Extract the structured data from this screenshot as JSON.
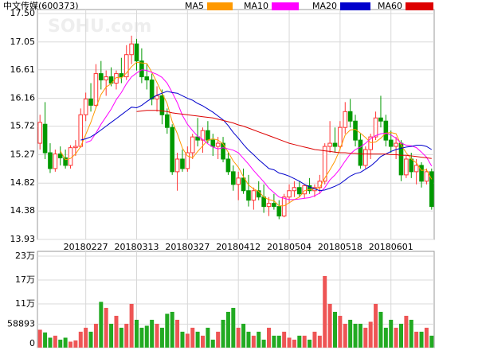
{
  "chart_data": {
    "type": "candlestick",
    "title": "中文传媒(600373)",
    "watermark": "SOHU.com",
    "categories": [
      "",
      "",
      "",
      "",
      "",
      "",
      "",
      "",
      "",
      "20180227",
      "",
      "",
      "",
      "",
      "",
      "",
      "",
      "",
      "",
      "20180313",
      "",
      "",
      "",
      "",
      "",
      "",
      "",
      "",
      "",
      "20180327",
      "",
      "",
      "",
      "",
      "",
      "",
      "",
      "",
      "",
      "20180412",
      "",
      "",
      "",
      "",
      "",
      "",
      "",
      "",
      "",
      "20180504",
      "",
      "",
      "",
      "",
      "",
      "",
      "",
      "",
      "",
      "20180518",
      "",
      "",
      "",
      "",
      "",
      "",
      "",
      "",
      "",
      "20180601",
      "",
      "",
      "",
      "",
      "",
      "",
      "",
      ""
    ],
    "open": [
      15.45,
      15.75,
      15.3,
      15.05,
      15.28,
      15.22,
      15.1,
      15.38,
      15.4,
      15.9,
      16.15,
      16.05,
      16.55,
      16.45,
      16.5,
      16.4,
      16.55,
      16.5,
      16.85,
      17.02,
      16.75,
      16.5,
      16.45,
      16.15,
      16.2,
      15.9,
      15.7,
      15.0,
      15.2,
      15.05,
      15.3,
      15.55,
      15.5,
      15.65,
      15.5,
      15.4,
      15.45,
      15.2,
      15.0,
      14.8,
      14.9,
      14.7,
      14.55,
      14.7,
      14.6,
      14.45,
      14.5,
      14.45,
      14.3,
      14.6,
      14.7,
      14.75,
      14.65,
      14.78,
      14.7,
      14.75,
      14.85,
      15.4,
      15.45,
      15.4,
      15.7,
      15.95,
      15.8,
      15.5,
      15.1,
      15.35,
      15.55,
      15.85,
      15.8,
      15.5,
      15.4,
      15.45,
      14.95,
      15.2,
      15.0,
      15.1,
      14.85,
      15.0
    ],
    "high": [
      15.9,
      16.1,
      15.45,
      15.35,
      15.4,
      15.35,
      15.42,
      15.5,
      16.0,
      16.25,
      16.4,
      16.7,
      16.75,
      16.6,
      16.65,
      16.6,
      16.8,
      17.0,
      17.15,
      17.1,
      16.95,
      16.7,
      16.55,
      16.35,
      16.3,
      16.0,
      15.75,
      15.3,
      15.35,
      15.4,
      15.6,
      15.85,
      15.7,
      15.8,
      15.6,
      15.55,
      15.55,
      15.3,
      15.1,
      15.0,
      15.05,
      14.95,
      14.75,
      14.85,
      14.8,
      14.6,
      14.65,
      14.55,
      14.65,
      14.8,
      14.85,
      14.85,
      14.8,
      14.9,
      14.8,
      14.95,
      15.45,
      15.8,
      15.7,
      15.8,
      16.1,
      16.15,
      15.9,
      15.6,
      15.4,
      15.6,
      15.95,
      16.2,
      15.9,
      15.65,
      15.55,
      15.5,
      15.25,
      15.3,
      15.2,
      15.15,
      15.05,
      15.05
    ],
    "low": [
      15.35,
      15.2,
      14.98,
      15.0,
      15.1,
      15.05,
      15.05,
      15.25,
      15.38,
      15.8,
      15.95,
      16.0,
      16.3,
      16.2,
      16.35,
      16.3,
      16.4,
      16.45,
      16.7,
      16.6,
      16.4,
      16.3,
      16.05,
      15.95,
      15.75,
      15.6,
      14.95,
      14.7,
      15.0,
      15.0,
      15.2,
      15.4,
      15.3,
      15.45,
      15.25,
      15.2,
      15.15,
      14.95,
      14.7,
      14.55,
      14.65,
      14.45,
      14.4,
      14.55,
      14.35,
      14.3,
      14.4,
      14.25,
      14.28,
      14.5,
      14.6,
      14.6,
      14.58,
      14.65,
      14.6,
      14.65,
      14.8,
      15.3,
      15.3,
      15.35,
      15.6,
      15.7,
      15.4,
      15.05,
      15.05,
      15.2,
      15.5,
      15.7,
      15.4,
      15.3,
      15.2,
      14.85,
      14.9,
      14.9,
      14.8,
      14.75,
      14.8,
      14.4
    ],
    "close": [
      15.78,
      15.3,
      15.05,
      15.28,
      15.22,
      15.1,
      15.38,
      15.4,
      15.9,
      16.15,
      16.05,
      16.55,
      16.45,
      16.5,
      16.4,
      16.55,
      16.5,
      16.85,
      17.02,
      16.75,
      16.5,
      16.45,
      16.15,
      16.2,
      15.9,
      15.7,
      15.0,
      15.2,
      15.05,
      15.3,
      15.55,
      15.5,
      15.65,
      15.5,
      15.4,
      15.45,
      15.2,
      15.0,
      14.8,
      14.9,
      14.7,
      14.55,
      14.7,
      14.6,
      14.45,
      14.5,
      14.45,
      14.3,
      14.6,
      14.7,
      14.75,
      14.65,
      14.78,
      14.7,
      14.75,
      14.85,
      15.4,
      15.45,
      15.4,
      15.7,
      15.95,
      15.8,
      15.5,
      15.1,
      15.35,
      15.55,
      15.85,
      15.8,
      15.5,
      15.4,
      15.45,
      14.95,
      15.2,
      15.0,
      15.1,
      14.85,
      15.0,
      14.45
    ],
    "series": [
      {
        "name": "MA5",
        "color": "#ff9900",
        "values": [
          null,
          null,
          null,
          null,
          15.33,
          15.19,
          15.21,
          15.28,
          15.4,
          15.59,
          15.78,
          16.01,
          16.22,
          16.34,
          16.39,
          16.49,
          16.48,
          16.56,
          16.66,
          16.73,
          16.72,
          16.71,
          16.57,
          16.41,
          16.24,
          16.08,
          15.79,
          15.6,
          15.37,
          15.25,
          15.22,
          15.32,
          15.41,
          15.5,
          15.52,
          15.5,
          15.44,
          15.31,
          15.17,
          15.07,
          14.92,
          14.79,
          14.73,
          14.69,
          14.6,
          14.56,
          14.54,
          14.46,
          14.46,
          14.51,
          14.56,
          14.6,
          14.7,
          14.72,
          14.73,
          14.75,
          14.9,
          15.03,
          15.17,
          15.36,
          15.58,
          15.66,
          15.67,
          15.61,
          15.54,
          15.46,
          15.47,
          15.53,
          15.61,
          15.62,
          15.6,
          15.42,
          15.3,
          15.2,
          15.14,
          15.02,
          15.03,
          14.88
        ]
      },
      {
        "name": "MA10",
        "color": "#ff00ff",
        "values": [
          null,
          null,
          null,
          null,
          null,
          null,
          null,
          null,
          null,
          15.46,
          15.49,
          15.61,
          15.75,
          15.87,
          15.99,
          16.14,
          16.25,
          16.39,
          16.5,
          16.56,
          16.61,
          16.6,
          16.57,
          16.54,
          16.49,
          16.4,
          16.25,
          16.09,
          15.89,
          15.75,
          15.65,
          15.56,
          15.51,
          15.44,
          15.39,
          15.36,
          15.38,
          15.36,
          15.34,
          15.3,
          15.21,
          15.12,
          15.02,
          14.93,
          14.84,
          14.74,
          14.67,
          14.6,
          14.58,
          14.56,
          14.56,
          14.57,
          14.58,
          14.59,
          14.62,
          14.66,
          14.75,
          14.87,
          14.95,
          15.05,
          15.17,
          15.28,
          15.35,
          15.39,
          15.45,
          15.52,
          15.57,
          15.6,
          15.61,
          15.58,
          15.53,
          15.45,
          15.42,
          15.41,
          15.38,
          15.31,
          15.23,
          15.09
        ]
      },
      {
        "name": "MA20",
        "color": "#0000cc",
        "values": [
          null,
          null,
          null,
          null,
          null,
          null,
          null,
          null,
          15.5,
          15.52,
          15.55,
          15.6,
          15.66,
          15.72,
          15.78,
          15.84,
          15.9,
          15.96,
          16.02,
          16.01,
          16.05,
          16.11,
          16.16,
          16.21,
          16.24,
          16.27,
          16.25,
          16.24,
          16.2,
          16.16,
          16.13,
          16.08,
          16.04,
          15.99,
          15.94,
          15.88,
          15.82,
          15.73,
          15.62,
          15.53,
          15.43,
          15.34,
          15.27,
          15.19,
          15.12,
          15.05,
          15.03,
          14.98,
          14.96,
          14.93,
          14.89,
          14.85,
          14.8,
          14.76,
          14.73,
          14.7,
          14.71,
          14.74,
          14.77,
          14.81,
          14.87,
          14.93,
          14.97,
          14.99,
          15.04,
          15.09,
          15.16,
          15.24,
          15.28,
          15.32,
          15.35,
          15.37,
          15.39,
          15.4,
          15.42,
          15.42,
          15.4,
          15.35
        ]
      },
      {
        "name": "MA60",
        "color": "#dd0000",
        "values": [
          null,
          null,
          null,
          null,
          null,
          null,
          null,
          null,
          null,
          null,
          null,
          null,
          null,
          null,
          null,
          null,
          null,
          null,
          null,
          15.95,
          15.96,
          15.97,
          15.97,
          15.97,
          15.96,
          15.95,
          15.93,
          15.92,
          15.91,
          15.9,
          15.89,
          15.88,
          15.87,
          15.86,
          15.85,
          15.83,
          15.81,
          15.79,
          15.77,
          15.74,
          15.72,
          15.69,
          15.66,
          15.63,
          15.6,
          15.57,
          15.54,
          15.51,
          15.48,
          15.45,
          15.43,
          15.41,
          15.39,
          15.37,
          15.35,
          15.34,
          15.33,
          15.32,
          15.31,
          15.3,
          15.3,
          15.29,
          15.29,
          15.28,
          15.28,
          15.28,
          15.28,
          15.28,
          15.28,
          15.27,
          15.27,
          15.26,
          15.26,
          15.25,
          15.24,
          15.23,
          15.22,
          15.21
        ]
      }
    ],
    "ylim": [
      13.93,
      17.5
    ],
    "yticks": [
      {
        "value": 17.5,
        "label": "17.50"
      },
      17.05,
      16.61,
      16.16,
      15.72,
      15.27,
      14.82,
      14.38,
      13.93
    ],
    "up_color": "#ff3333",
    "down_color": "#009900",
    "grid": true,
    "volume": {
      "values": [
        45000,
        38000,
        25000,
        30000,
        20000,
        25000,
        15000,
        18000,
        40000,
        50000,
        40000,
        60000,
        115000,
        100000,
        60000,
        80000,
        50000,
        60000,
        110000,
        70000,
        50000,
        55000,
        70000,
        60000,
        50000,
        85000,
        90000,
        70000,
        40000,
        35000,
        50000,
        40000,
        30000,
        50000,
        20000,
        40000,
        70000,
        90000,
        100000,
        50000,
        60000,
        40000,
        30000,
        40000,
        20000,
        50000,
        30000,
        30000,
        40000,
        25000,
        20000,
        30000,
        30000,
        20000,
        40000,
        30000,
        180000,
        110000,
        90000,
        80000,
        60000,
        70000,
        60000,
        60000,
        50000,
        65000,
        110000,
        90000,
        50000,
        70000,
        50000,
        60000,
        80000,
        70000,
        40000,
        40000,
        50000,
        30000
      ],
      "ylim": [
        0,
        230000
      ],
      "yticks": [
        {
          "value": 230000,
          "label": "23万"
        },
        {
          "value": 170000,
          "label": "17万"
        },
        {
          "value": 110000,
          "label": "11万"
        },
        58893,
        0
      ]
    }
  }
}
